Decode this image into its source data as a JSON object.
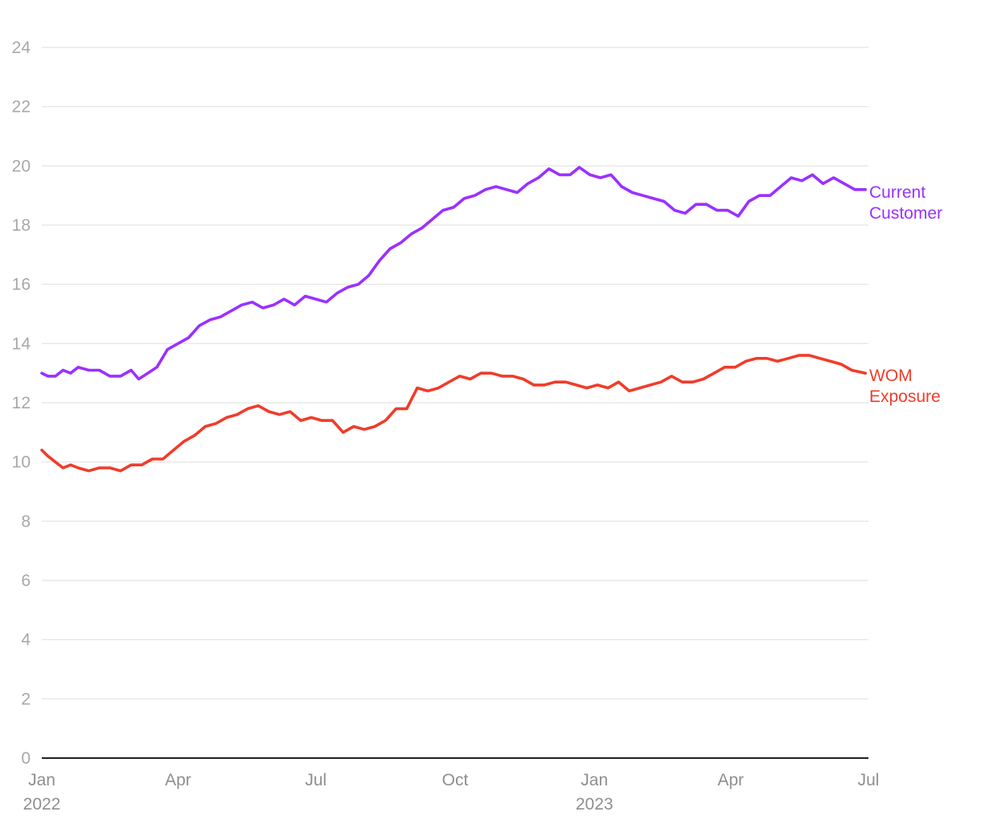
{
  "chart_data": {
    "type": "line",
    "title": "",
    "xlabel": "",
    "ylabel": "",
    "ylim": [
      0,
      24
    ],
    "yticks": [
      0,
      2,
      4,
      6,
      8,
      10,
      12,
      14,
      16,
      18,
      20,
      22,
      24
    ],
    "xlim": [
      "2022-01-01",
      "2023-07-01"
    ],
    "xticks": [
      {
        "date": "2022-01-01",
        "label": "Jan",
        "sublabel": "2022"
      },
      {
        "date": "2022-04-01",
        "label": "Apr",
        "sublabel": ""
      },
      {
        "date": "2022-07-01",
        "label": "Jul",
        "sublabel": ""
      },
      {
        "date": "2022-10-01",
        "label": "Oct",
        "sublabel": ""
      },
      {
        "date": "2023-01-01",
        "label": "Jan",
        "sublabel": "2023"
      },
      {
        "date": "2023-04-01",
        "label": "Apr",
        "sublabel": ""
      },
      {
        "date": "2023-07-01",
        "label": "Jul",
        "sublabel": ""
      }
    ],
    "grid": true,
    "legend": "direct labels at right end of lines",
    "series": [
      {
        "name": "Current Customer",
        "label_lines": [
          "Current",
          "Customer"
        ],
        "color": "#9b30ff",
        "points": [
          [
            "2022-01-01",
            13.0
          ],
          [
            "2022-01-05",
            12.9
          ],
          [
            "2022-01-10",
            12.9
          ],
          [
            "2022-01-15",
            13.1
          ],
          [
            "2022-01-20",
            13.0
          ],
          [
            "2022-01-25",
            13.2
          ],
          [
            "2022-02-01",
            13.1
          ],
          [
            "2022-02-08",
            13.1
          ],
          [
            "2022-02-15",
            12.9
          ],
          [
            "2022-02-22",
            12.9
          ],
          [
            "2022-03-01",
            13.1
          ],
          [
            "2022-03-06",
            12.8
          ],
          [
            "2022-03-12",
            13.0
          ],
          [
            "2022-03-18",
            13.2
          ],
          [
            "2022-03-25",
            13.8
          ],
          [
            "2022-04-01",
            14.0
          ],
          [
            "2022-04-08",
            14.2
          ],
          [
            "2022-04-15",
            14.6
          ],
          [
            "2022-04-22",
            14.8
          ],
          [
            "2022-04-29",
            14.9
          ],
          [
            "2022-05-06",
            15.1
          ],
          [
            "2022-05-13",
            15.3
          ],
          [
            "2022-05-20",
            15.4
          ],
          [
            "2022-05-27",
            15.2
          ],
          [
            "2022-06-03",
            15.3
          ],
          [
            "2022-06-10",
            15.5
          ],
          [
            "2022-06-17",
            15.3
          ],
          [
            "2022-06-24",
            15.6
          ],
          [
            "2022-07-01",
            15.5
          ],
          [
            "2022-07-08",
            15.4
          ],
          [
            "2022-07-15",
            15.7
          ],
          [
            "2022-07-22",
            15.9
          ],
          [
            "2022-07-29",
            16.0
          ],
          [
            "2022-08-05",
            16.3
          ],
          [
            "2022-08-12",
            16.8
          ],
          [
            "2022-08-19",
            17.2
          ],
          [
            "2022-08-26",
            17.4
          ],
          [
            "2022-09-02",
            17.7
          ],
          [
            "2022-09-09",
            17.9
          ],
          [
            "2022-09-16",
            18.2
          ],
          [
            "2022-09-23",
            18.5
          ],
          [
            "2022-09-30",
            18.6
          ],
          [
            "2022-10-07",
            18.9
          ],
          [
            "2022-10-14",
            19.0
          ],
          [
            "2022-10-21",
            19.2
          ],
          [
            "2022-10-28",
            19.3
          ],
          [
            "2022-11-04",
            19.2
          ],
          [
            "2022-11-11",
            19.1
          ],
          [
            "2022-11-18",
            19.4
          ],
          [
            "2022-11-25",
            19.6
          ],
          [
            "2022-12-02",
            19.9
          ],
          [
            "2022-12-09",
            19.7
          ],
          [
            "2022-12-16",
            19.7
          ],
          [
            "2022-12-22",
            19.95
          ],
          [
            "2022-12-29",
            19.7
          ],
          [
            "2023-01-05",
            19.6
          ],
          [
            "2023-01-12",
            19.7
          ],
          [
            "2023-01-19",
            19.3
          ],
          [
            "2023-01-26",
            19.1
          ],
          [
            "2023-02-02",
            19.0
          ],
          [
            "2023-02-09",
            18.9
          ],
          [
            "2023-02-16",
            18.8
          ],
          [
            "2023-02-23",
            18.5
          ],
          [
            "2023-03-02",
            18.4
          ],
          [
            "2023-03-09",
            18.7
          ],
          [
            "2023-03-16",
            18.7
          ],
          [
            "2023-03-23",
            18.5
          ],
          [
            "2023-03-30",
            18.5
          ],
          [
            "2023-04-06",
            18.3
          ],
          [
            "2023-04-13",
            18.8
          ],
          [
            "2023-04-20",
            19.0
          ],
          [
            "2023-04-27",
            19.0
          ],
          [
            "2023-05-04",
            19.3
          ],
          [
            "2023-05-11",
            19.6
          ],
          [
            "2023-05-18",
            19.5
          ],
          [
            "2023-05-25",
            19.7
          ],
          [
            "2023-06-01",
            19.4
          ],
          [
            "2023-06-08",
            19.6
          ],
          [
            "2023-06-15",
            19.4
          ],
          [
            "2023-06-22",
            19.2
          ],
          [
            "2023-06-29",
            19.2
          ]
        ]
      },
      {
        "name": "WOM Exposure",
        "label_lines": [
          "WOM",
          "Exposure"
        ],
        "color": "#f03c2a",
        "points": [
          [
            "2022-01-01",
            10.4
          ],
          [
            "2022-01-05",
            10.2
          ],
          [
            "2022-01-10",
            10.0
          ],
          [
            "2022-01-15",
            9.8
          ],
          [
            "2022-01-20",
            9.9
          ],
          [
            "2022-01-25",
            9.8
          ],
          [
            "2022-02-01",
            9.7
          ],
          [
            "2022-02-08",
            9.8
          ],
          [
            "2022-02-15",
            9.8
          ],
          [
            "2022-02-22",
            9.7
          ],
          [
            "2022-03-01",
            9.9
          ],
          [
            "2022-03-08",
            9.9
          ],
          [
            "2022-03-15",
            10.1
          ],
          [
            "2022-03-22",
            10.1
          ],
          [
            "2022-03-29",
            10.4
          ],
          [
            "2022-04-05",
            10.7
          ],
          [
            "2022-04-12",
            10.9
          ],
          [
            "2022-04-19",
            11.2
          ],
          [
            "2022-04-26",
            11.3
          ],
          [
            "2022-05-03",
            11.5
          ],
          [
            "2022-05-10",
            11.6
          ],
          [
            "2022-05-17",
            11.8
          ],
          [
            "2022-05-24",
            11.9
          ],
          [
            "2022-05-31",
            11.7
          ],
          [
            "2022-06-07",
            11.6
          ],
          [
            "2022-06-14",
            11.7
          ],
          [
            "2022-06-21",
            11.4
          ],
          [
            "2022-06-28",
            11.5
          ],
          [
            "2022-07-05",
            11.4
          ],
          [
            "2022-07-12",
            11.4
          ],
          [
            "2022-07-19",
            11.0
          ],
          [
            "2022-07-26",
            11.2
          ],
          [
            "2022-08-02",
            11.1
          ],
          [
            "2022-08-09",
            11.2
          ],
          [
            "2022-08-16",
            11.4
          ],
          [
            "2022-08-23",
            11.8
          ],
          [
            "2022-08-30",
            11.8
          ],
          [
            "2022-09-06",
            12.5
          ],
          [
            "2022-09-13",
            12.4
          ],
          [
            "2022-09-20",
            12.5
          ],
          [
            "2022-09-27",
            12.7
          ],
          [
            "2022-10-04",
            12.9
          ],
          [
            "2022-10-11",
            12.8
          ],
          [
            "2022-10-18",
            13.0
          ],
          [
            "2022-10-25",
            13.0
          ],
          [
            "2022-11-01",
            12.9
          ],
          [
            "2022-11-08",
            12.9
          ],
          [
            "2022-11-15",
            12.8
          ],
          [
            "2022-11-22",
            12.6
          ],
          [
            "2022-11-29",
            12.6
          ],
          [
            "2022-12-06",
            12.7
          ],
          [
            "2022-12-13",
            12.7
          ],
          [
            "2022-12-20",
            12.6
          ],
          [
            "2022-12-27",
            12.5
          ],
          [
            "2023-01-03",
            12.6
          ],
          [
            "2023-01-10",
            12.5
          ],
          [
            "2023-01-17",
            12.7
          ],
          [
            "2023-01-24",
            12.4
          ],
          [
            "2023-01-31",
            12.5
          ],
          [
            "2023-02-07",
            12.6
          ],
          [
            "2023-02-14",
            12.7
          ],
          [
            "2023-02-21",
            12.9
          ],
          [
            "2023-02-28",
            12.7
          ],
          [
            "2023-03-07",
            12.7
          ],
          [
            "2023-03-14",
            12.8
          ],
          [
            "2023-03-21",
            13.0
          ],
          [
            "2023-03-28",
            13.2
          ],
          [
            "2023-04-04",
            13.2
          ],
          [
            "2023-04-11",
            13.4
          ],
          [
            "2023-04-18",
            13.5
          ],
          [
            "2023-04-25",
            13.5
          ],
          [
            "2023-05-02",
            13.4
          ],
          [
            "2023-05-09",
            13.5
          ],
          [
            "2023-05-16",
            13.6
          ],
          [
            "2023-05-23",
            13.6
          ],
          [
            "2023-05-30",
            13.5
          ],
          [
            "2023-06-06",
            13.4
          ],
          [
            "2023-06-13",
            13.3
          ],
          [
            "2023-06-20",
            13.1
          ],
          [
            "2023-06-29",
            13.0
          ]
        ]
      }
    ]
  }
}
